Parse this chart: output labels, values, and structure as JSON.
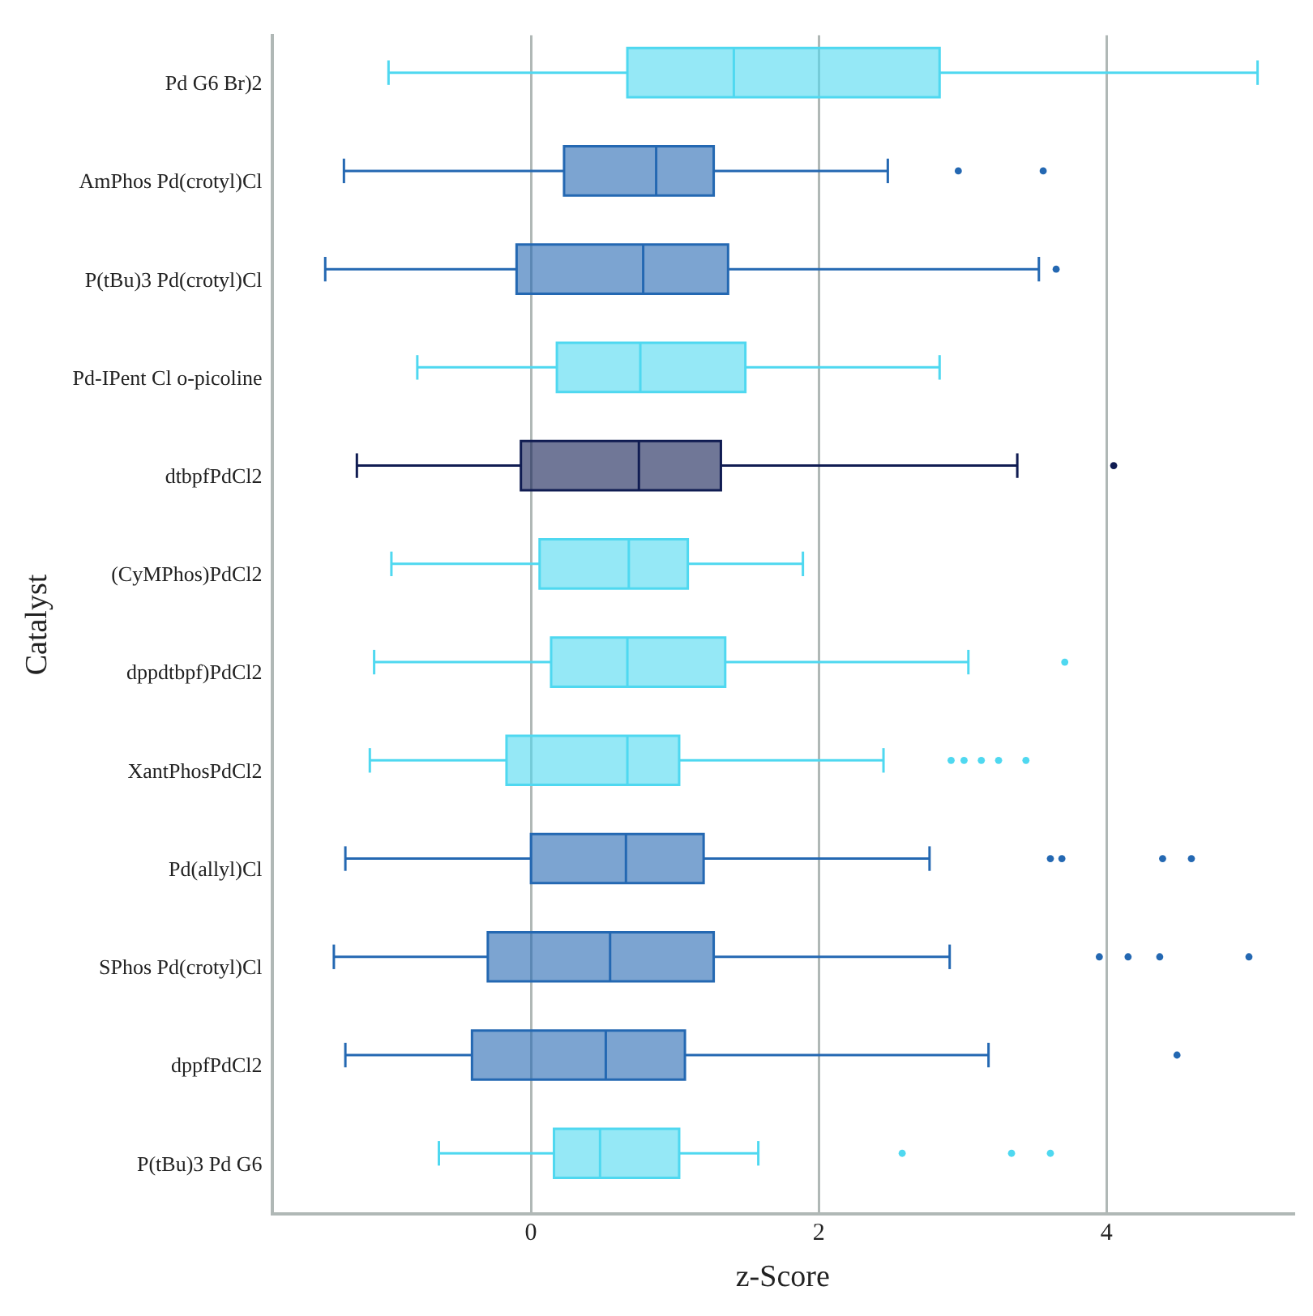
{
  "chart_data": {
    "type": "box",
    "orientation": "horizontal",
    "xlabel": "z-Score",
    "ylabel": "Catalyst",
    "categories": [
      "Pd G6 Br)2",
      "AmPhos Pd(crotyl)Cl",
      "P(tBu)3 Pd(crotyl)Cl",
      "Pd-IPent Cl o-picoline",
      "dtbpfPdCl2",
      "(CyMPhos)PdCl2",
      "dppdtbpf)PdCl2",
      "XantPhosPdCl2",
      "Pd(allyl)Cl",
      "SPhos Pd(crotyl)Cl",
      "dppfPdCl2",
      "P(tBu)3 Pd G6"
    ],
    "boxes": [
      {
        "low": -0.99,
        "q1": 0.67,
        "median": 1.41,
        "q3": 2.84,
        "high": 5.05
      },
      {
        "low": -1.3,
        "q1": 0.23,
        "median": 0.87,
        "q3": 1.27,
        "high": 2.48,
        "outliers": [
          2.97,
          3.56
        ]
      },
      {
        "low": -1.43,
        "q1": -0.1,
        "median": 0.78,
        "q3": 1.37,
        "high": 3.53,
        "outliers": [
          3.65
        ]
      },
      {
        "low": -0.79,
        "q1": 0.18,
        "median": 0.76,
        "q3": 1.49,
        "high": 2.84
      },
      {
        "low": -1.21,
        "q1": -0.07,
        "median": 0.75,
        "q3": 1.32,
        "high": 3.38,
        "outliers": [
          4.05
        ]
      },
      {
        "low": -0.97,
        "q1": 0.06,
        "median": 0.68,
        "q3": 1.09,
        "high": 1.89
      },
      {
        "low": -1.09,
        "q1": 0.14,
        "median": 0.67,
        "q3": 1.35,
        "high": 3.04,
        "outliers": [
          3.71
        ]
      },
      {
        "low": -1.12,
        "q1": -0.17,
        "median": 0.67,
        "q3": 1.03,
        "high": 2.45,
        "outliers": [
          2.92,
          3.01,
          3.13,
          3.25,
          3.44
        ]
      },
      {
        "low": -1.29,
        "q1": 0.0,
        "median": 0.66,
        "q3": 1.2,
        "high": 2.77,
        "outliers": [
          3.61,
          3.69,
          4.39,
          4.59
        ]
      },
      {
        "low": -1.37,
        "q1": -0.3,
        "median": 0.55,
        "q3": 1.27,
        "high": 2.91,
        "outliers": [
          3.95,
          4.15,
          4.37,
          4.99
        ]
      },
      {
        "low": -1.29,
        "q1": -0.41,
        "median": 0.52,
        "q3": 1.07,
        "high": 3.18,
        "outliers": [
          4.49
        ]
      },
      {
        "low": -0.64,
        "q1": 0.16,
        "median": 0.48,
        "q3": 1.03,
        "high": 1.58,
        "outliers": [
          2.58,
          3.34,
          3.61
        ]
      }
    ],
    "colors": [
      "#4fd8f0",
      "#2468b2",
      "#2468b2",
      "#4fd8f0",
      "#101c52",
      "#4fd8f0",
      "#4fd8f0",
      "#4fd8f0",
      "#2468b2",
      "#2468b2",
      "#2468b2",
      "#4fd8f0"
    ],
    "xlim": [
      -1.8,
      5.3
    ],
    "xticks": [
      0,
      2,
      4
    ],
    "grid": "x",
    "legend": false
  }
}
